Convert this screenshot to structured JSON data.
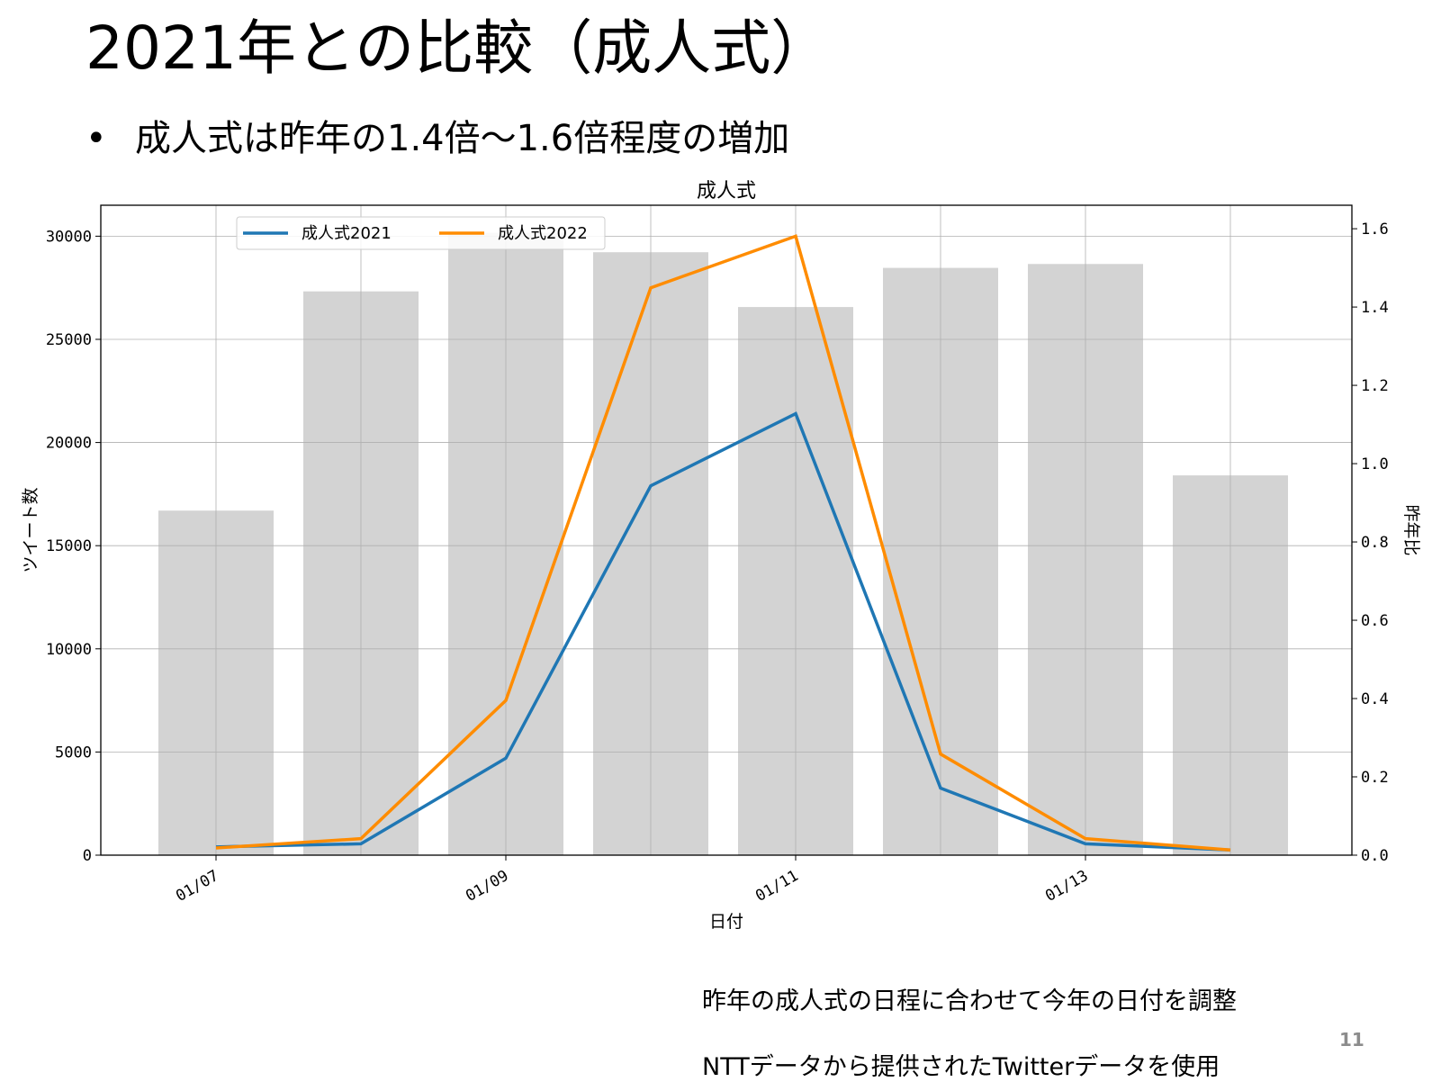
{
  "slide": {
    "title": "2021年との比較（成人式）",
    "bullet_marker": "•",
    "bullet": "成人式は昨年の1.4倍～1.6倍程度の増加",
    "note1": "昨年の成人式の日程に合わせて今年の日付を調整",
    "note2": "NTTデータから提供されたTwitterデータを使用",
    "page_number": "11"
  },
  "chart_data": {
    "type": "bar+line",
    "title": "成人式",
    "xlabel": "日付",
    "ylabel_left": "ツイート数",
    "ylabel_right": "昨年比",
    "x_tick_labels": [
      "01/07",
      "01/09",
      "01/11",
      "01/13"
    ],
    "x_tick_indices": [
      0,
      2,
      4,
      6
    ],
    "n_days": 8,
    "ylim_left": [
      0,
      31500
    ],
    "yticks_left": [
      0,
      5000,
      10000,
      15000,
      20000,
      25000,
      30000
    ],
    "ylim_right": [
      0,
      1.66
    ],
    "yticks_right": [
      0.0,
      0.2,
      0.4,
      0.6,
      0.8,
      1.0,
      1.2,
      1.4,
      1.6
    ],
    "ytick_right_labels": [
      "0.0",
      "0.2",
      "0.4",
      "0.6",
      "0.8",
      "1.0",
      "1.2",
      "1.4",
      "1.6"
    ],
    "grid": true,
    "legend_position": "upper-left",
    "bar_series": {
      "axis": "right",
      "color": "#d3d3d3",
      "values": [
        0.88,
        1.44,
        1.59,
        1.54,
        1.4,
        1.5,
        1.51,
        0.97
      ]
    },
    "series": [
      {
        "name": "成人式2021",
        "axis": "left",
        "color": "#1f77b4",
        "values": [
          400,
          550,
          4700,
          17900,
          21400,
          3250,
          550,
          250
        ]
      },
      {
        "name": "成人式2022",
        "axis": "left",
        "color": "#ff8c00",
        "values": [
          350,
          800,
          7500,
          27500,
          30000,
          4900,
          800,
          250
        ]
      }
    ]
  }
}
